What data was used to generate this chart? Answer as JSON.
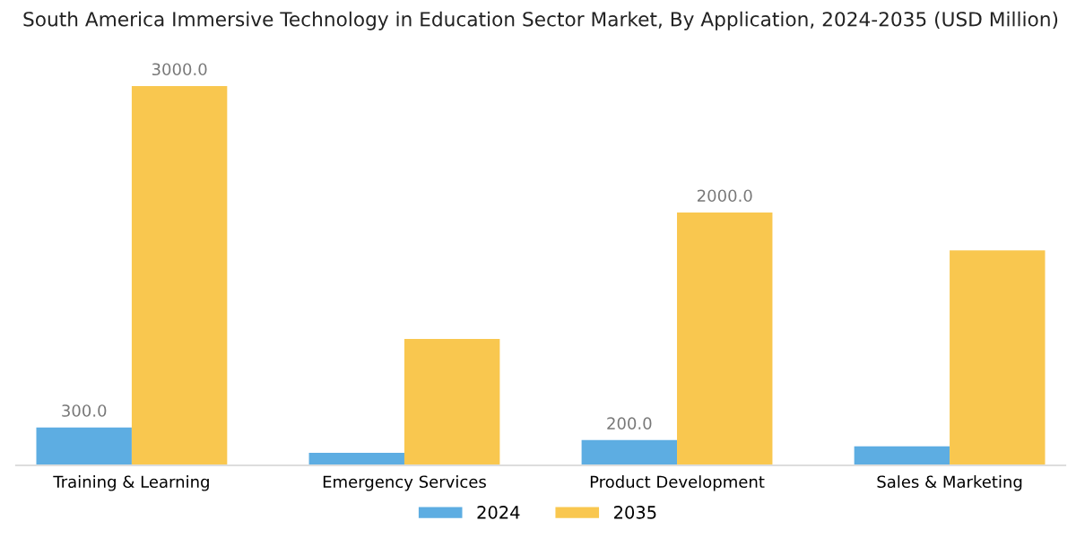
{
  "chart_data": {
    "type": "bar",
    "title": "South America Immersive Technology in Education Sector Market, By Application, 2024-2035 (USD Million)",
    "categories": [
      "Training & Learning",
      "Emergency Services",
      "Product Development",
      "Sales & Marketing"
    ],
    "series": [
      {
        "name": "2024",
        "color": "#5dade2",
        "values": [
          300,
          100,
          200,
          150
        ],
        "value_labels": [
          "300.0",
          null,
          "200.0",
          null
        ]
      },
      {
        "name": "2035",
        "color": "#f9c74f",
        "values": [
          3000,
          1000,
          2000,
          1700
        ],
        "value_labels": [
          "3000.0",
          null,
          "2000.0",
          null
        ]
      }
    ],
    "legend": "bottom",
    "grid": false
  }
}
